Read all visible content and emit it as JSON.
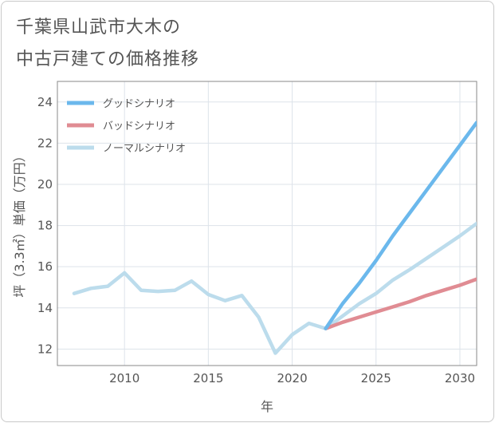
{
  "page": {
    "title_line1": "千葉県山武市大木の",
    "title_line2": "中古戸建ての価格推移"
  },
  "chart_data": {
    "type": "line",
    "title": "千葉県山武市大木の中古戸建ての価格推移",
    "xlabel": "年",
    "ylabel": "坪（3.3㎡）単価（万円）",
    "xlim": [
      2006,
      2031
    ],
    "ylim": [
      11.2,
      25.0
    ],
    "xticks": [
      2010,
      2015,
      2020,
      2025,
      2030
    ],
    "yticks": [
      12,
      14,
      16,
      18,
      20,
      22,
      24
    ],
    "grid": true,
    "legend_position": "top-left",
    "series": [
      {
        "name": "グッドシナリオ",
        "color": "#6bb8ec",
        "x": [
          2022,
          2023,
          2024,
          2025,
          2026,
          2027,
          2028,
          2029,
          2030,
          2031
        ],
        "y": [
          13.0,
          14.2,
          15.2,
          16.3,
          17.5,
          18.6,
          19.7,
          20.8,
          21.9,
          23.0
        ]
      },
      {
        "name": "バッドシナリオ",
        "color": "#e08c93",
        "x": [
          2022,
          2023,
          2024,
          2025,
          2026,
          2027,
          2028,
          2029,
          2030,
          2031
        ],
        "y": [
          13.0,
          13.3,
          13.55,
          13.8,
          14.05,
          14.3,
          14.6,
          14.85,
          15.1,
          15.4
        ]
      },
      {
        "name": "ノーマルシナリオ",
        "color": "#bcdcec",
        "x": [
          2007,
          2008,
          2009,
          2010,
          2011,
          2012,
          2013,
          2014,
          2015,
          2016,
          2017,
          2018,
          2019,
          2020,
          2021,
          2022,
          2023,
          2024,
          2025,
          2026,
          2027,
          2028,
          2029,
          2030,
          2031
        ],
        "y": [
          14.7,
          14.95,
          15.05,
          15.7,
          14.85,
          14.8,
          14.85,
          15.3,
          14.65,
          14.35,
          14.6,
          13.55,
          11.8,
          12.7,
          13.25,
          13.0,
          13.6,
          14.2,
          14.7,
          15.35,
          15.85,
          16.4,
          16.95,
          17.5,
          18.1
        ]
      }
    ]
  }
}
